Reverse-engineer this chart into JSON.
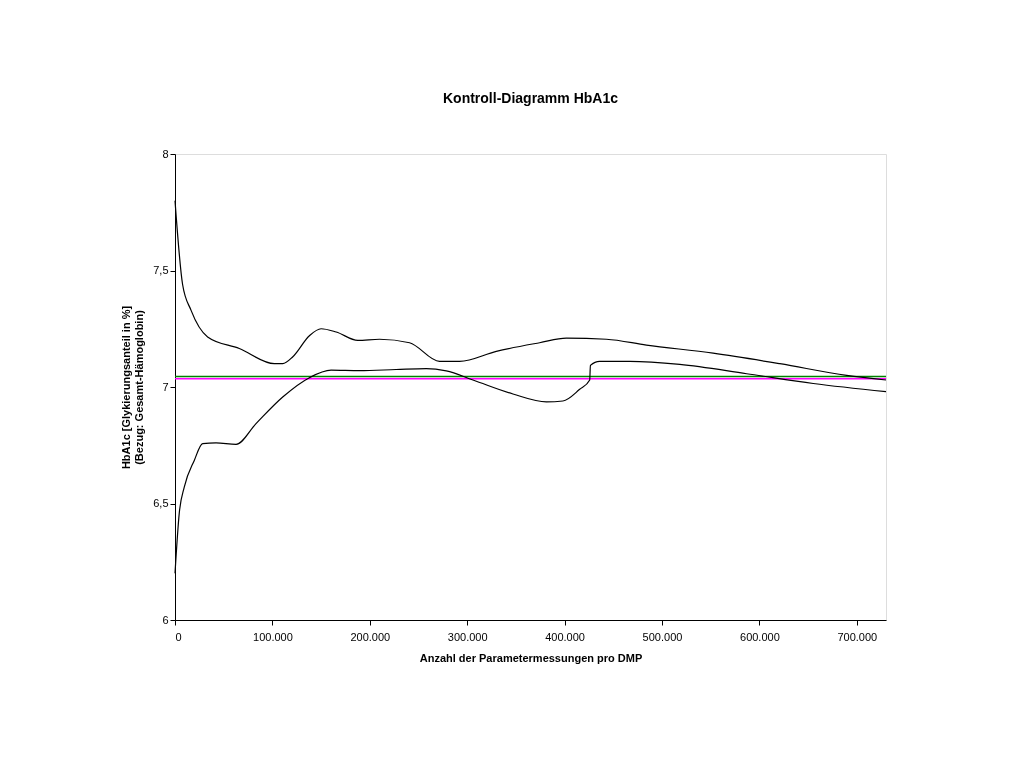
{
  "chart_data": {
    "type": "line",
    "title": "Kontroll-Diagramm HbA1c",
    "xlabel": "Anzahl der Parametermessungen pro DMP",
    "ylabel": "HbA1c [Glykierungsanteil in %]\n(Bezug: Gesamt-Hämoglobin)",
    "xlim": [
      0,
      730000
    ],
    "ylim": [
      6,
      8
    ],
    "xticks": [
      0,
      {
        "value": 100000,
        "label": "100.000"
      },
      {
        "value": 200000,
        "label": "200.000"
      },
      {
        "value": 300000,
        "label": "300.000"
      },
      {
        "value": 400000,
        "label": "400.000"
      },
      {
        "value": 500000,
        "label": "500.000"
      },
      {
        "value": 600000,
        "label": "600.000"
      },
      {
        "value": 700000,
        "label": "700.000"
      }
    ],
    "yticks": [
      6,
      {
        "value": 6.5,
        "label": "6,5"
      },
      7,
      {
        "value": 7.5,
        "label": "7,5"
      },
      8
    ],
    "grid": false,
    "marker": "none",
    "line_style": "solid",
    "series": [
      {
        "color": "#000000",
        "x": [
          0,
          7800,
          16400,
          33500,
          66000,
          102000,
          110600,
          121000,
          138000,
          150000,
          165500,
          187700,
          210000,
          240800,
          271600,
          292200,
          329900,
          374400,
          401800,
          443000,
          484000,
          552500,
          621000,
          689600,
          730000
        ],
        "values": [
          7.8,
          7.44,
          7.33,
          7.215,
          7.165,
          7.1,
          7.1,
          7.13,
          7.22,
          7.25,
          7.236,
          7.2,
          7.205,
          7.19,
          7.11,
          7.11,
          7.153,
          7.19,
          7.21,
          7.205,
          7.18,
          7.145,
          7.1,
          7.05,
          7.03
        ]
      },
      {
        "color": "#000000",
        "x": [
          0,
          4400,
          9500,
          19800,
          28400,
          42100,
          62700,
          83200,
          110600,
          138000,
          160300,
          189400,
          227000,
          258000,
          278500,
          305900,
          347000,
          381300,
          398300,
          415500,
          425800,
          426500,
          436000,
          467000,
          518300,
          586900,
          655300,
          730000
        ],
        "values": [
          6.2,
          6.46,
          6.57,
          6.685,
          6.757,
          6.76,
          6.754,
          6.843,
          6.957,
          7.04,
          7.072,
          7.07,
          7.075,
          7.079,
          7.069,
          7.03,
          6.97,
          6.936,
          6.94,
          6.99,
          7.03,
          7.093,
          7.11,
          7.11,
          7.097,
          7.057,
          7.015,
          6.98
        ]
      }
    ],
    "ref_lines": [
      {
        "axis": "y",
        "value": 7.045,
        "color": "#008000"
      },
      {
        "axis": "y",
        "value": 7.035,
        "color": "#ff00ff"
      }
    ]
  }
}
